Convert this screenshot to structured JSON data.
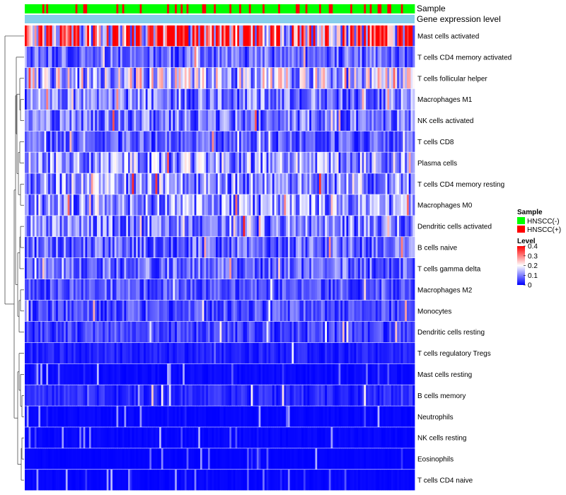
{
  "chart_data": {
    "type": "heatmap",
    "title": "",
    "annotation_tracks": [
      {
        "name": "Sample"
      },
      {
        "name": "Gene expression level"
      }
    ],
    "rows": [
      "Mast cells activated",
      "T cells CD4 memory activated",
      "T cells follicular helper",
      "Macrophages M1",
      "NK cells activated",
      "T cells CD8",
      "Plasma cells",
      "T cells CD4 memory resting",
      "Macrophages M0",
      "Dendritic cells activated",
      "B cells naive",
      "T cells gamma delta",
      "Macrophages M2",
      "Monocytes",
      "Dendritic cells resting",
      "T cells regulatory  Tregs",
      "Mast cells resting",
      "B cells memory",
      "Neutrophils",
      "NK cells resting",
      "Eosinophils",
      "T cells CD4 naive"
    ],
    "row_mean_levels": [
      0.3,
      0.08,
      0.15,
      0.1,
      0.09,
      0.07,
      0.12,
      0.12,
      0.11,
      0.1,
      0.08,
      0.08,
      0.06,
      0.06,
      0.05,
      0.025,
      0.015,
      0.03,
      0.01,
      0.01,
      0.005,
      0.008
    ],
    "column_count": 200,
    "color_scale": {
      "range": [
        0,
        0.4
      ],
      "ticks": [
        "0.4",
        "0.3",
        "0.2",
        "0.1",
        "0"
      ],
      "colors": [
        "#0000ff",
        "#ffffff",
        "#ff0000"
      ]
    },
    "legend": {
      "sample_title": "Sample",
      "sample_items": [
        {
          "label": "HNSCC(-)",
          "color": "#00ff00"
        },
        {
          "label": "HNSCC(+)",
          "color": "#ff0000"
        }
      ],
      "level_title": "Level"
    },
    "track_colors": {
      "gene_expression_level": "#87ceeb"
    },
    "legend_position": "right"
  }
}
